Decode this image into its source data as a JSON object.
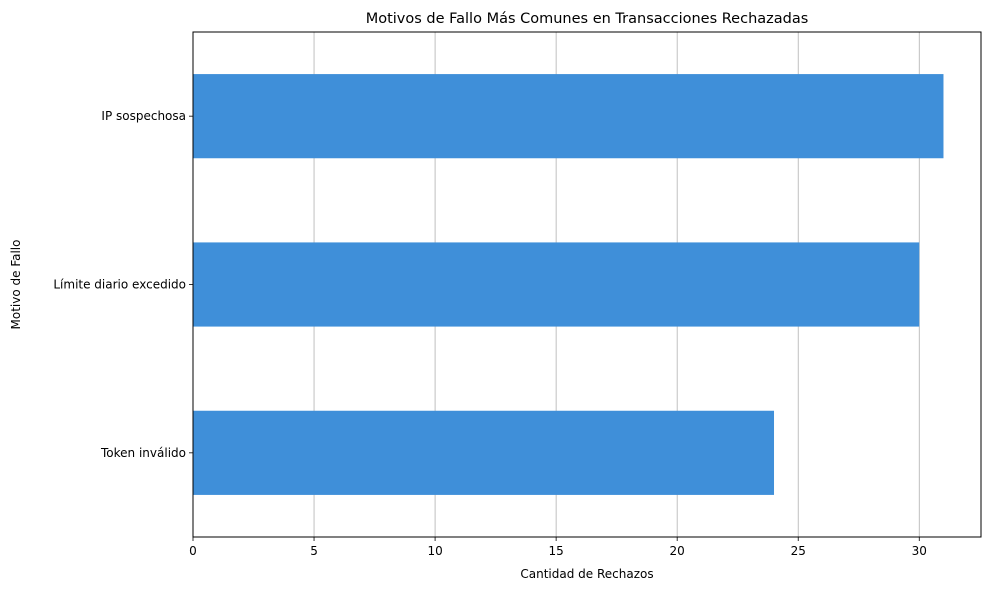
{
  "chart_data": {
    "type": "bar",
    "orientation": "horizontal",
    "title": "Motivos de Fallo Más Comunes en Transacciones Rechazadas",
    "xlabel": "Cantidad de Rechazos",
    "ylabel": "Motivo de Fallo",
    "categories": [
      "IP sospechosa",
      "Límite diario excedido",
      "Token inválido"
    ],
    "values": [
      31,
      30,
      24
    ],
    "xlim": [
      0,
      32.55
    ],
    "xticks": [
      "0",
      "5",
      "10",
      "15",
      "20",
      "25",
      "30"
    ],
    "grid": "x",
    "bar_color": "#3f8fd9",
    "grid_color": "#b0b0b0"
  }
}
